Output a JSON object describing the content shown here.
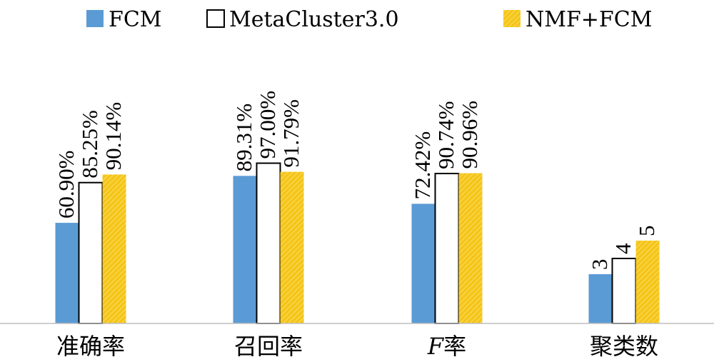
{
  "chart_data": {
    "type": "bar",
    "categories": [
      "准确率",
      "召回率",
      "F率",
      "聚类数"
    ],
    "series": [
      {
        "name": "FCM",
        "values": [
          60.9,
          89.31,
          72.42,
          3
        ],
        "labels": [
          "60.90%",
          "89.31%",
          "72.42%",
          "3"
        ],
        "color": "#5b9bd5",
        "fill": "solid"
      },
      {
        "name": "MetaCluster3.0",
        "values": [
          85.25,
          97.0,
          90.74,
          4
        ],
        "labels": [
          "85.25%",
          "97.00%",
          "90.74%",
          "4"
        ],
        "color": "#ffffff",
        "fill": "outline"
      },
      {
        "name": "NMF+FCM",
        "values": [
          90.14,
          91.79,
          90.96,
          5
        ],
        "labels": [
          "90.14%",
          "91.79%",
          "90.96%",
          "5"
        ],
        "color": "#f5c518",
        "fill": "hatched"
      }
    ],
    "legend_position": "top",
    "grid": false
  }
}
